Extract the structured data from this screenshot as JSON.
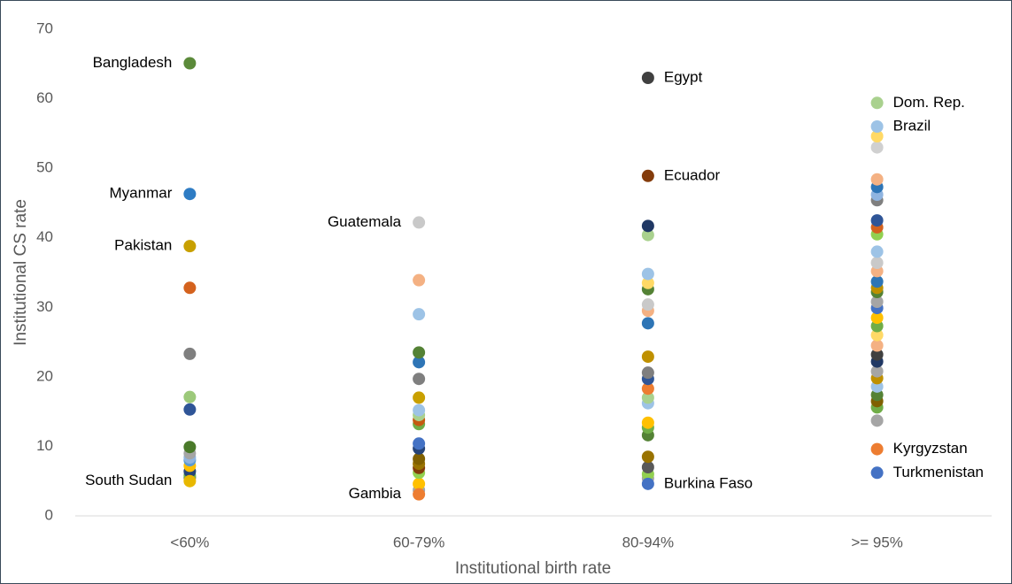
{
  "chart_data": {
    "type": "strip",
    "x_label": "Institutional birth rate",
    "y_label": "Institutional CS rate",
    "categories": [
      "<60%",
      "60-79%",
      "80-94%",
      ">= 95%"
    ],
    "ylim": [
      0,
      70
    ],
    "yticks": [
      0,
      10,
      20,
      30,
      40,
      50,
      60,
      70
    ],
    "groups": [
      {
        "values": [
          65.1,
          46.3,
          38.8,
          5.0,
          32.8,
          23.3,
          17.1,
          15.3,
          9.9,
          9.0,
          8.4,
          8.0,
          7.2,
          6.4,
          5.8,
          5.5
        ],
        "colors": [
          "#5b8a3a",
          "#2e7cc4",
          "#c8a000",
          "#e8b800",
          "#d4621e",
          "#7f7f7f",
          "#9cc97a",
          "#2f5597",
          "#4a7a2a",
          "#a5a5a5",
          "#8fb4e0",
          "#5b9bd5",
          "#ffc000",
          "#264478",
          "#70ad47",
          "#636363"
        ],
        "labels": [
          "Bangladesh",
          "Myanmar",
          "Pakistan",
          "South Sudan",
          null,
          null,
          null,
          null,
          null,
          null,
          null,
          null,
          null,
          null,
          null,
          null
        ]
      },
      {
        "values": [
          42.2,
          3.1,
          33.9,
          29.0,
          23.5,
          22.1,
          19.7,
          17.0,
          15.2,
          14.5,
          13.8,
          13.2,
          10.4,
          9.7,
          8.2,
          7.5,
          6.9,
          6.2,
          4.6,
          3.7
        ],
        "colors": [
          "#c9c9c9",
          "#ed7d31",
          "#f4b183",
          "#9dc3e6",
          "#548235",
          "#2e75b6",
          "#7f7f7f",
          "#c9a000",
          "#9dc3e6",
          "#a9d18e",
          "#c55a11",
          "#70ad47",
          "#4472c4",
          "#264478",
          "#806000",
          "#997300",
          "#843c0c",
          "#92d050",
          "#ffc000",
          "#a5a5a5"
        ],
        "labels": [
          "Guatemala",
          "Gambia",
          null,
          null,
          null,
          null,
          null,
          null,
          null,
          null,
          null,
          null,
          null,
          null,
          null,
          null,
          null,
          null,
          null,
          null
        ]
      },
      {
        "values": [
          63.0,
          48.9,
          4.6,
          41.7,
          40.4,
          34.8,
          33.5,
          32.6,
          30.4,
          29.5,
          27.7,
          22.9,
          20.6,
          19.7,
          18.3,
          17.0,
          16.2,
          13.4,
          12.7,
          11.6,
          8.5,
          7.0,
          6.0,
          5.4
        ],
        "colors": [
          "#404040",
          "#843c0c",
          "#4472c4",
          "#203864",
          "#a9d18e",
          "#9dc3e6",
          "#ffd966",
          "#548235",
          "#c9c9c9",
          "#f4b183",
          "#2e75b6",
          "#bf9000",
          "#7f7f7f",
          "#2f5597",
          "#ed7d31",
          "#a9d18e",
          "#9dc3e6",
          "#ffc000",
          "#70ad47",
          "#548235",
          "#997300",
          "#595959",
          "#92d050",
          "#a5a5a5"
        ],
        "labels": [
          "Egypt",
          "Ecuador",
          "Burkina Faso",
          null,
          null,
          null,
          null,
          null,
          null,
          null,
          null,
          null,
          null,
          null,
          null,
          null,
          null,
          null,
          null,
          null,
          null,
          null,
          null,
          null
        ]
      },
      {
        "values": [
          59.4,
          56.0,
          9.6,
          6.2,
          54.6,
          53.0,
          48.4,
          47.3,
          46.2,
          45.4,
          42.5,
          41.5,
          40.5,
          38.0,
          36.4,
          35.2,
          33.7,
          32.8,
          32.2,
          30.8,
          29.9,
          28.5,
          27.3,
          26.0,
          24.5,
          23.2,
          22.2,
          20.8,
          19.8,
          18.6,
          17.4,
          16.5,
          15.6,
          13.7
        ],
        "colors": [
          "#a9d18e",
          "#9dc3e6",
          "#ed7d31",
          "#4472c4",
          "#ffd966",
          "#d0d0d0",
          "#f4b183",
          "#2e75b6",
          "#8fb4e0",
          "#7f7f7f",
          "#2f5597",
          "#d4621e",
          "#92d050",
          "#9dc3e6",
          "#c9c9c9",
          "#f4b183",
          "#2e75b6",
          "#bf9000",
          "#548235",
          "#a5a5a5",
          "#4472c4",
          "#ffc000",
          "#70ad47",
          "#ffd966",
          "#f4b183",
          "#404040",
          "#203864",
          "#a5a5a5",
          "#bf9000",
          "#9dc3e6",
          "#548235",
          "#806000",
          "#70ad47",
          "#a5a5a5"
        ],
        "labels": [
          "Dom. Rep.",
          "Brazil",
          "Kyrgyzstan",
          "Turkmenistan",
          null,
          null,
          null,
          null,
          null,
          null,
          null,
          null,
          null,
          null,
          null,
          null,
          null,
          null,
          null,
          null,
          null,
          null,
          null,
          null,
          null,
          null,
          null,
          null,
          null,
          null,
          null,
          null,
          null,
          null
        ]
      }
    ]
  }
}
